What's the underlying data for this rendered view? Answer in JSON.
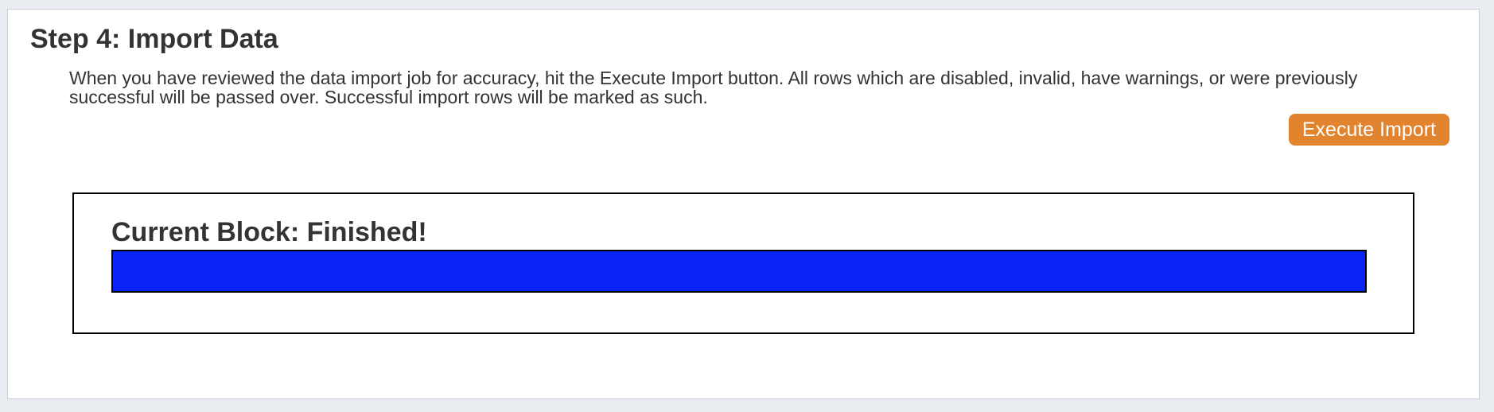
{
  "step": {
    "title": "Step 4: Import Data",
    "description": "When you have reviewed the data import job for accuracy, hit the Execute Import button. All rows which are disabled, invalid, have warnings, or were previously successful will be passed over. Successful import rows will be marked as such.",
    "button_label": "Execute Import"
  },
  "progress": {
    "label": "Current Block: Finished!",
    "percent": 100
  },
  "colors": {
    "page_background": "#e9edf2",
    "panel_background": "#ffffff",
    "panel_border": "#cbcfd4",
    "text": "#333333",
    "execute_button_orange": "#e2832e",
    "execute_button_text": "#ffffff",
    "progress_bar_blue": "#0a23f5",
    "box_border": "#000000"
  }
}
